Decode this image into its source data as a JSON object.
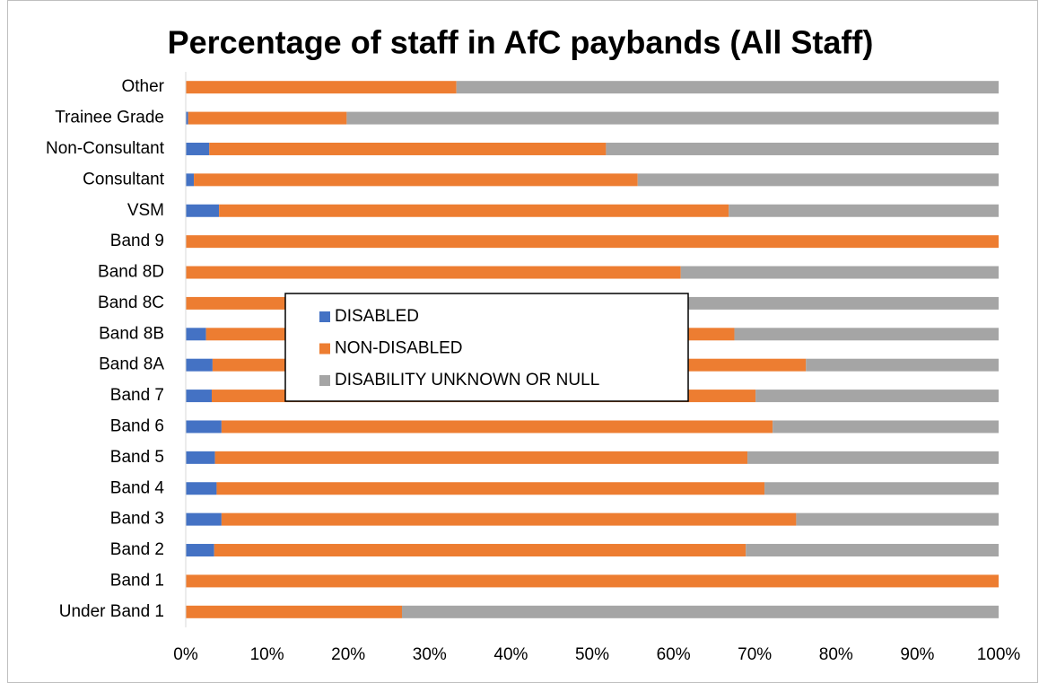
{
  "chart_data": {
    "type": "stacked_bar_horizontal",
    "title": "Percentage of staff in AfC paybands (All Staff)",
    "categories": [
      "Under Band 1",
      "Band 1",
      "Band 2",
      "Band 3",
      "Band 4",
      "Band 5",
      "Band 6",
      "Band 7",
      "Band 8A",
      "Band 8B",
      "Band 8C",
      "Band 8D",
      "Band 9",
      "VSM",
      "Consultant",
      "Non-Consultant",
      "Trainee Grade",
      "Other"
    ],
    "series": [
      {
        "name": "DISABLED",
        "color": "#4472c4",
        "values": [
          0,
          0,
          3.5,
          4.4,
          3.8,
          3.6,
          4.4,
          3.2,
          3.3,
          2.5,
          0,
          0,
          0,
          4.1,
          1.0,
          2.9,
          0.3,
          0
        ]
      },
      {
        "name": "NON-DISABLED",
        "color": "#ed7d31",
        "values": [
          26.6,
          100,
          65.4,
          70.7,
          67.4,
          65.5,
          67.8,
          66.9,
          73.0,
          65.0,
          61.7,
          60.9,
          100,
          62.7,
          54.6,
          48.8,
          19.5,
          33.3
        ]
      },
      {
        "name": "DISABILITY UNKNOWN OR NULL",
        "color": "#a5a5a5",
        "values": [
          73.4,
          0,
          31.1,
          24.9,
          28.8,
          30.9,
          27.8,
          29.9,
          23.7,
          32.5,
          38.3,
          39.1,
          0,
          33.2,
          44.4,
          48.3,
          80.2,
          66.7
        ]
      }
    ],
    "xlim": [
      0,
      100
    ],
    "xticks": [
      {
        "value": 0,
        "label": "0%"
      },
      {
        "value": 10,
        "label": "10%"
      },
      {
        "value": 20,
        "label": "20%"
      },
      {
        "value": 30,
        "label": "30%"
      },
      {
        "value": 40,
        "label": "40%"
      },
      {
        "value": 50,
        "label": "50%"
      },
      {
        "value": 60,
        "label": "60%"
      },
      {
        "value": 70,
        "label": "70%"
      },
      {
        "value": 80,
        "label": "80%"
      },
      {
        "value": 90,
        "label": "90%"
      },
      {
        "value": 100,
        "label": "100%"
      }
    ],
    "grid": false,
    "legend": "center"
  }
}
